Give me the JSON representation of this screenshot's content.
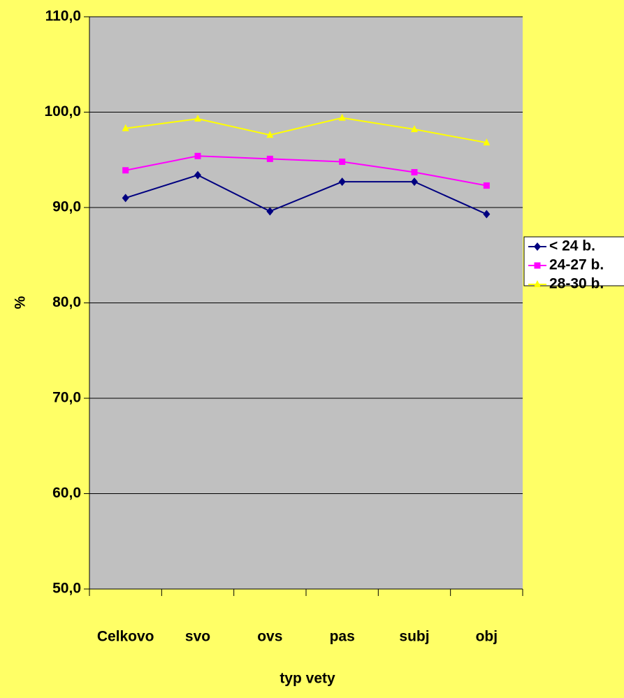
{
  "chart_data": {
    "type": "line",
    "x_label": "typ vety",
    "y_label": "%",
    "categories": [
      "Celkovo",
      "svo",
      "ovs",
      "pas",
      "subj",
      "obj"
    ],
    "series": [
      {
        "name": "< 24 b.",
        "color": "#000080",
        "marker": "diamond",
        "values": [
          91.0,
          93.4,
          89.6,
          92.7,
          92.7,
          89.3
        ]
      },
      {
        "name": "24-27 b.",
        "color": "#ff00ff",
        "marker": "square",
        "values": [
          93.9,
          95.4,
          95.1,
          94.8,
          93.7,
          92.3
        ]
      },
      {
        "name": "28-30 b.",
        "color": "#ffff00",
        "marker": "triangle",
        "values": [
          98.3,
          99.3,
          97.6,
          99.4,
          98.2,
          96.8
        ]
      }
    ],
    "ylim": [
      50,
      110
    ],
    "yticks": [
      {
        "value": 50,
        "label": "50,0"
      },
      {
        "value": 60,
        "label": "60,0"
      },
      {
        "value": 70,
        "label": "70,0"
      },
      {
        "value": 80,
        "label": "80,0"
      },
      {
        "value": 90,
        "label": "90,0"
      },
      {
        "value": 100,
        "label": "100,0"
      },
      {
        "value": 110,
        "label": "110,0"
      }
    ],
    "grid": true,
    "legend": "right"
  }
}
